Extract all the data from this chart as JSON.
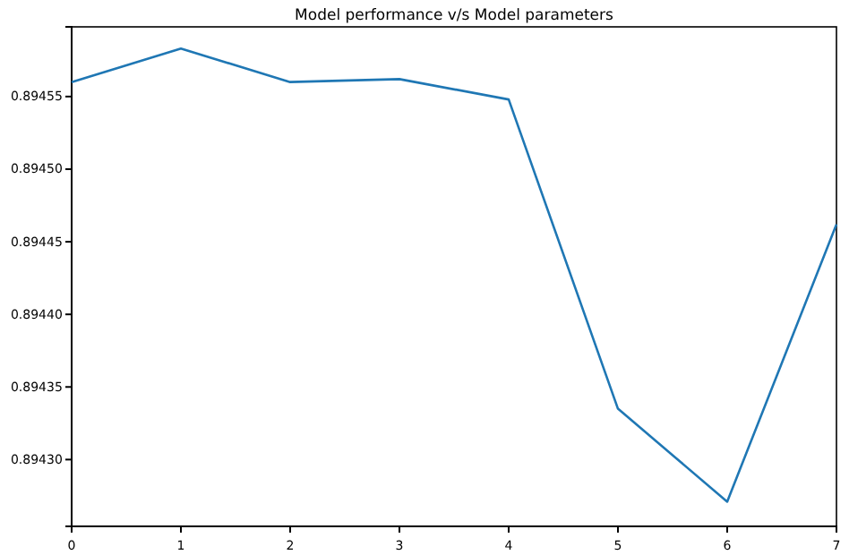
{
  "chart_data": {
    "type": "line",
    "title": "Model performance v/s Model parameters",
    "x": [
      0,
      1,
      2,
      3,
      4,
      5,
      6,
      7
    ],
    "series": [
      {
        "color": "#1f77b4",
        "values": [
          0.89456,
          0.894583,
          0.89456,
          0.894562,
          0.894548,
          0.894335,
          0.894271,
          0.894462
        ]
      }
    ],
    "xlim": [
      0,
      7
    ],
    "xticks": [
      0,
      1,
      2,
      3,
      4,
      5,
      6,
      7
    ],
    "ylim": [
      0.894254,
      0.894598
    ],
    "yticks": [
      {
        "value": 0.8943,
        "label": "0.89430"
      },
      {
        "value": 0.89435,
        "label": "0.89435"
      },
      {
        "value": 0.8944,
        "label": "0.89440"
      },
      {
        "value": 0.89445,
        "label": "0.89445"
      },
      {
        "value": 0.8945,
        "label": "0.89450"
      },
      {
        "value": 0.89455,
        "label": "0.89455"
      }
    ],
    "grid": false,
    "marker": "none",
    "line_style": "solid"
  }
}
